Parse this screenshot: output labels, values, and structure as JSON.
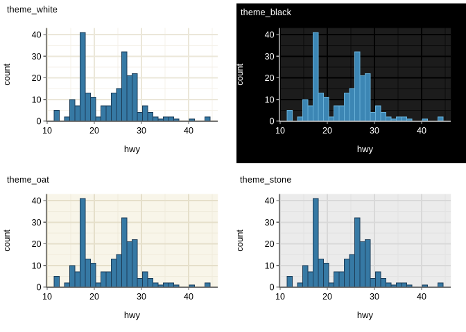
{
  "page": {
    "background": "#ffffff",
    "description": "Four histograms of hwy comparing ggplot themes"
  },
  "chart_data": {
    "type": "bar",
    "subtype": "histogram",
    "shared": {
      "xlabel": "hwy",
      "ylabel": "count",
      "x_ticks": [
        10,
        20,
        30,
        40
      ],
      "x_minor_ticks": [
        15,
        25,
        35,
        45
      ],
      "y_ticks": [
        0,
        10,
        20,
        30,
        40
      ],
      "y_minor_ticks": [
        5,
        15,
        25,
        35
      ],
      "xlim": [
        9.79,
        46.21
      ],
      "ylim": [
        0,
        43.05
      ],
      "bin_start": 11.448,
      "bin_width": 1.1034,
      "counts": [
        5,
        0,
        2,
        10,
        7,
        41,
        13,
        11,
        2,
        7,
        7,
        13,
        15,
        32,
        21,
        22,
        4,
        7,
        4,
        2,
        1,
        2,
        2,
        1,
        0,
        0,
        1,
        0,
        0,
        2
      ],
      "total_n": 234,
      "grid": "on",
      "legend": "none"
    },
    "panels": [
      {
        "id": "theme_white",
        "title": "theme_white",
        "theme": {
          "figure_bg": "#ffffff",
          "panel_bg": "#ffffff",
          "grid_major": "#ebe7d9",
          "grid_minor": "#f4f1e8",
          "axis": "#5c5c5c",
          "text": "#000000",
          "bar_fill": "#3679a4",
          "bar_stroke": "#1c3c57",
          "figure_inset": false
        }
      },
      {
        "id": "theme_black",
        "title": "theme_black",
        "theme": {
          "figure_bg": "#000000",
          "panel_bg": "#1c1c1c",
          "grid_major": "#000000",
          "grid_minor": "#0a0a0a",
          "axis": "#bdbdbd",
          "text": "#ffffff",
          "bar_fill": "#3c86b4",
          "bar_stroke": "#67b0d8",
          "figure_inset": true
        }
      },
      {
        "id": "theme_oat",
        "title": "theme_oat",
        "theme": {
          "figure_bg": "#ffffff",
          "panel_bg": "#f8f5e9",
          "grid_major": "#e5dfca",
          "grid_minor": "#efeadb",
          "axis": "#5c5c5c",
          "text": "#000000",
          "bar_fill": "#3679a4",
          "bar_stroke": "#1c3c57",
          "figure_inset": false
        }
      },
      {
        "id": "theme_stone",
        "title": "theme_stone",
        "theme": {
          "figure_bg": "#ffffff",
          "panel_bg": "#ebebeb",
          "grid_major": "#d8d8d8",
          "grid_minor": "#e2e2e2",
          "axis": "#5c5c5c",
          "text": "#000000",
          "bar_fill": "#3679a4",
          "bar_stroke": "#1c3c57",
          "figure_inset": false
        }
      }
    ]
  }
}
